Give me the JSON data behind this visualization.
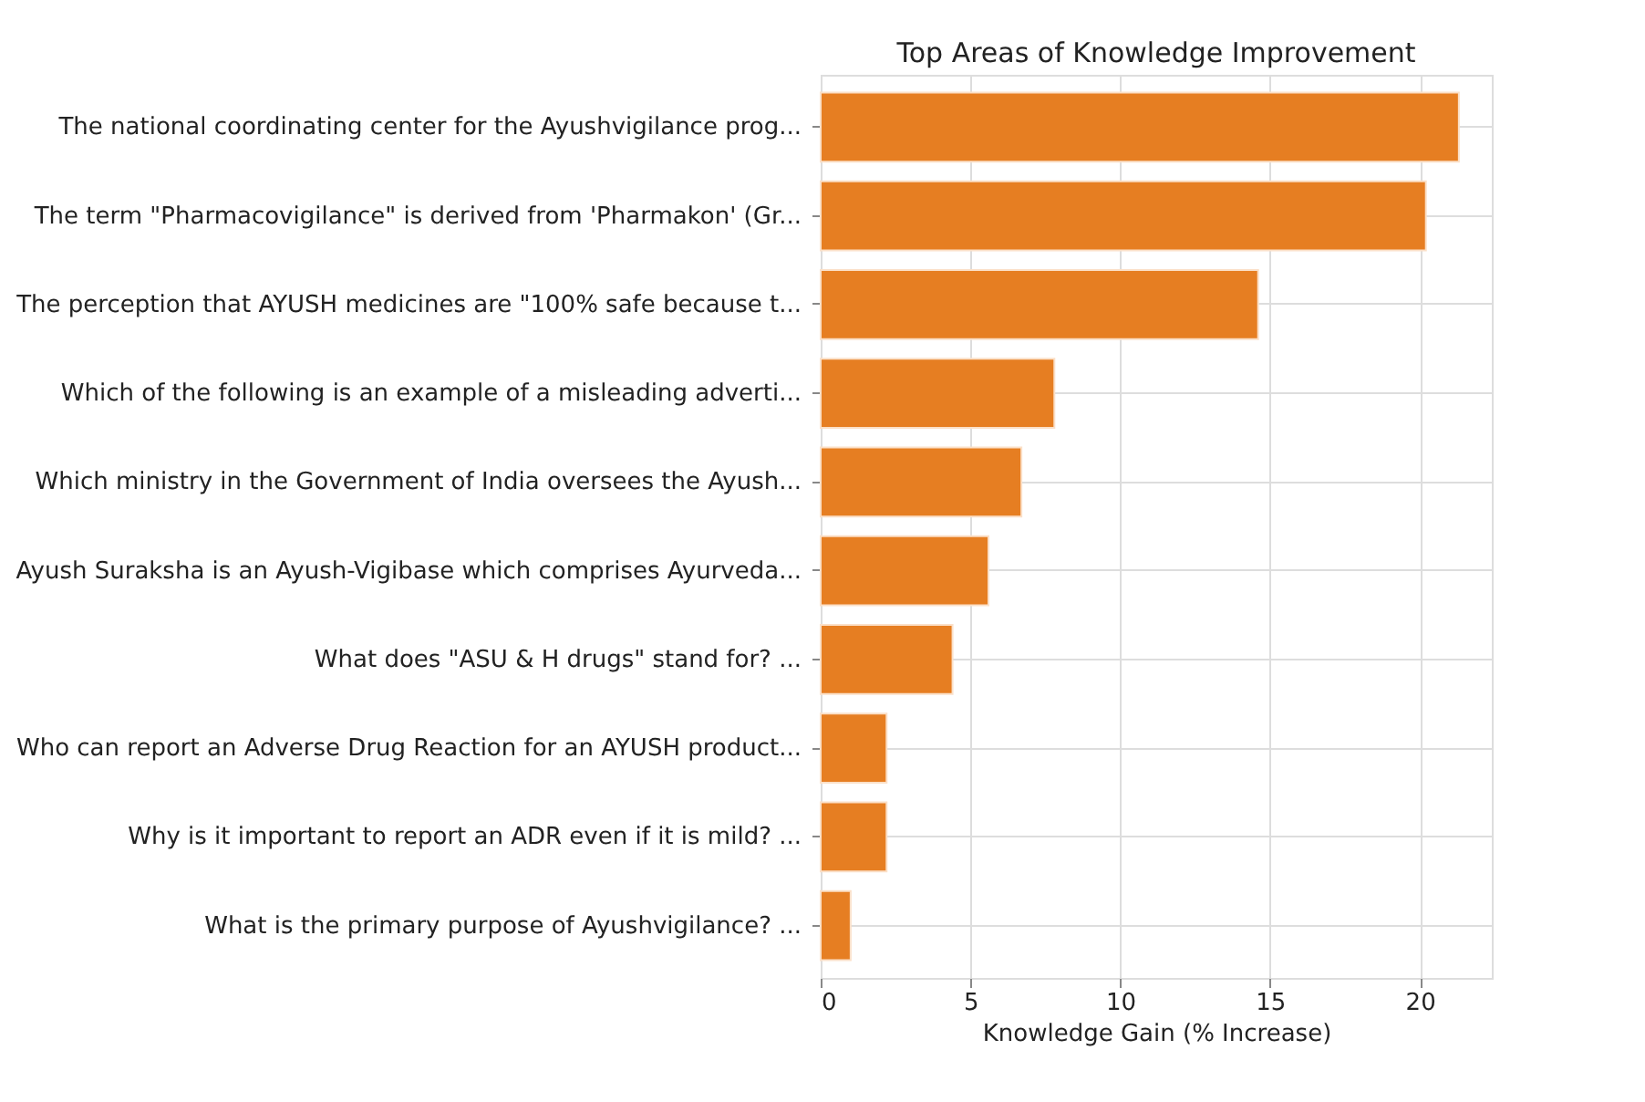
{
  "chart_data": {
    "type": "bar",
    "orientation": "horizontal",
    "title": "Top Areas of Knowledge Improvement",
    "xlabel": "Knowledge Gain (% Increase)",
    "categories": [
      "The national coordinating center for the Ayushvigilance prog...",
      "The term \"Pharmacovigilance\" is derived from 'Pharmakon' (Gr...",
      "The perception that AYUSH medicines are \"100% safe because t...",
      "Which of the following is an example of a misleading adverti...",
      "Which ministry in the Government of India oversees the Ayush...",
      "Ayush Suraksha is an Ayush-Vigibase which comprises Ayurveda...",
      "What does \"ASU & H drugs\" stand for? ...",
      "Who can report an Adverse Drug Reaction for an AYUSH product...",
      "Why is it important to report an ADR even if it is mild? ...",
      "What is the primary purpose of Ayushvigilance? ..."
    ],
    "values": [
      21.3,
      20.2,
      14.6,
      7.8,
      6.7,
      5.6,
      4.4,
      2.2,
      2.2,
      1.0
    ],
    "color": "#e67e22",
    "xlim": [
      0,
      22.4
    ],
    "xticks": [
      0,
      5,
      10,
      15,
      20
    ],
    "grid": true
  }
}
